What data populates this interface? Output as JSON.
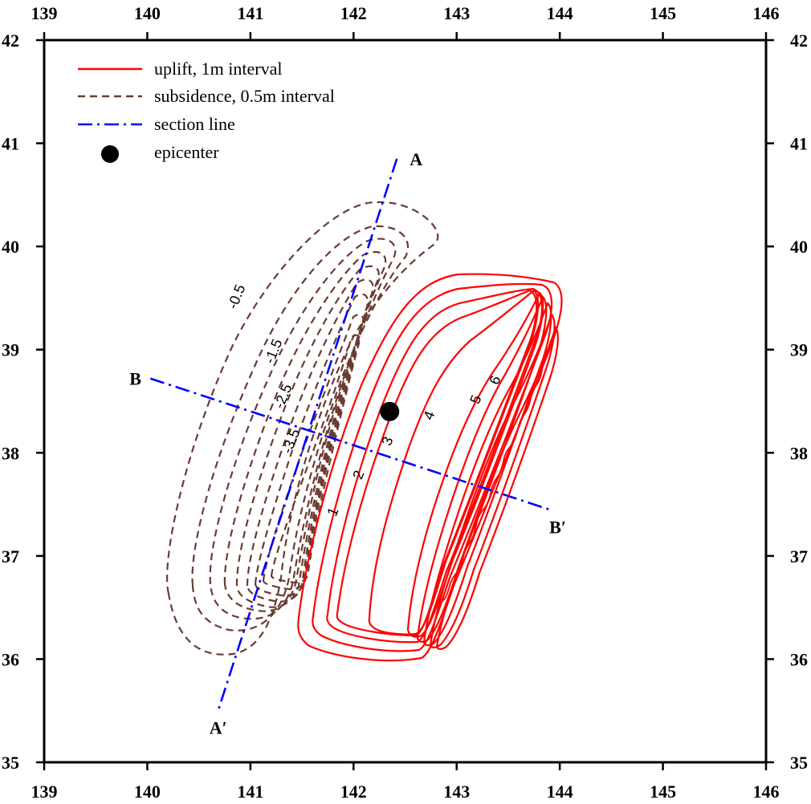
{
  "chart_data": {
    "type": "map",
    "x_ticks": [
      "139",
      "140",
      "141",
      "142",
      "143",
      "144",
      "145",
      "146"
    ],
    "y_ticks": [
      "35",
      "36",
      "37",
      "38",
      "39",
      "40",
      "41",
      "42"
    ],
    "xlim": [
      139,
      146
    ],
    "ylim": [
      35,
      42
    ],
    "legend": [
      {
        "label": "uplift, 1m interval",
        "style": "solid",
        "color": "#ff0000"
      },
      {
        "label": "subsidence, 0.5m interval",
        "style": "dashed",
        "color": "#6b3b32"
      },
      {
        "label": "section line",
        "style": "dashdot",
        "color": "#0000ff"
      },
      {
        "label": "epicenter",
        "style": "dot",
        "color": "#000000"
      }
    ],
    "epicenter": {
      "lon": 142.35,
      "lat": 38.4
    },
    "section_lines": [
      {
        "start_label": "A",
        "end_label": "A′",
        "start": [
          142.42,
          40.85
        ],
        "end": [
          140.68,
          35.48
        ]
      },
      {
        "start_label": "B",
        "end_label": "B′",
        "start": [
          140.03,
          38.72
        ],
        "end": [
          143.93,
          37.44
        ]
      }
    ],
    "subsidence_labels": [
      "-0.5",
      "-1.5",
      "-2.5",
      "-3.5"
    ],
    "uplift_labels": [
      "1",
      "2",
      "3",
      "4",
      "5",
      "6"
    ],
    "colors": {
      "uplift": "#ff0000",
      "subsidence": "#6b3b32",
      "section": "#0000ff",
      "axis": "#000000"
    }
  }
}
